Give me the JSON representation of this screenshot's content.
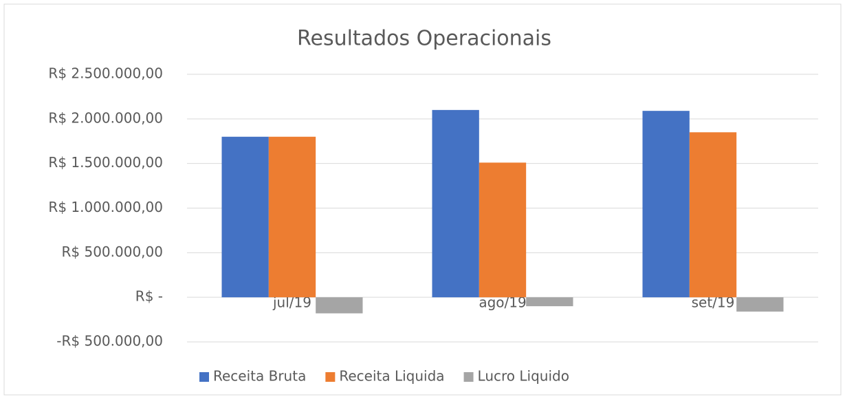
{
  "chart_data": {
    "type": "bar",
    "title": "Resultados Operacionais",
    "categories": [
      "jul/19",
      "ago/19",
      "set/19"
    ],
    "series": [
      {
        "name": "Receita Bruta",
        "color": "#4472c4",
        "values": [
          1800000,
          2100000,
          2090000
        ]
      },
      {
        "name": "Receita Liquida",
        "color": "#ed7d31",
        "values": [
          1800000,
          1510000,
          1850000
        ]
      },
      {
        "name": "Lucro Liquido",
        "color": "#a5a5a5",
        "values": [
          -180000,
          -100000,
          -160000
        ]
      }
    ],
    "ylim": [
      -500000,
      2500000
    ],
    "yticks": [
      {
        "value": -500000,
        "label": "-R$ 500.000,00"
      },
      {
        "value": 0,
        "label": "R$ -"
      },
      {
        "value": 500000,
        "label": "R$ 500.000,00"
      },
      {
        "value": 1000000,
        "label": "R$ 1.000.000,00"
      },
      {
        "value": 1500000,
        "label": "R$ 1.500.000,00"
      },
      {
        "value": 2000000,
        "label": "R$ 2.000.000,00"
      },
      {
        "value": 2500000,
        "label": "R$ 2.500.000,00"
      }
    ],
    "grid": true,
    "legend": "bottom"
  }
}
